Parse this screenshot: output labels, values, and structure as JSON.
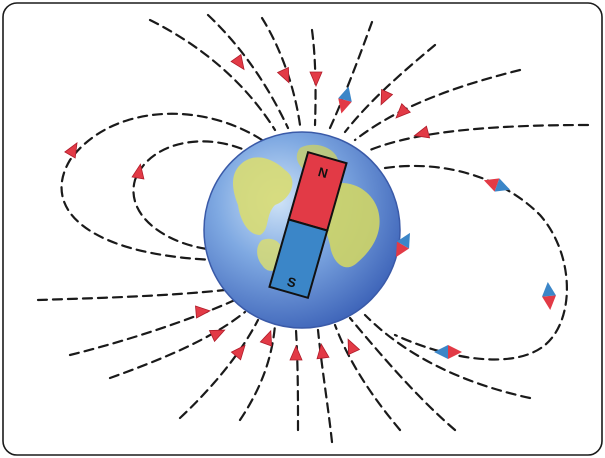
{
  "diagram": {
    "magnet": {
      "north_label": "N",
      "south_label": "S",
      "north_color": "#e23a46",
      "south_color": "#3b86c8"
    },
    "colors": {
      "field_line": "#1a1a1a",
      "arrow": "#e23a46",
      "compass_red": "#e23a46",
      "compass_blue": "#3b86c8",
      "ocean": "#5b8fd4",
      "land": "#d8dc73"
    }
  }
}
